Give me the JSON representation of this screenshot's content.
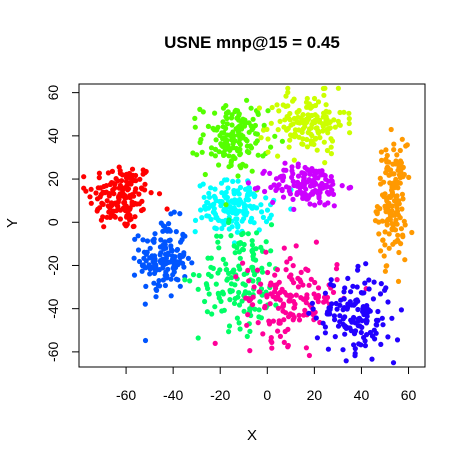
{
  "chart_data": {
    "type": "scatter",
    "title": "USNE mnp@15 = 0.45",
    "xlabel": "X",
    "ylabel": "Y",
    "xlim": [
      -80,
      67
    ],
    "ylim": [
      -67,
      64
    ],
    "xticks": [
      -60,
      -40,
      -20,
      0,
      20,
      40,
      60
    ],
    "yticks": [
      -60,
      -40,
      -20,
      0,
      20,
      40,
      60
    ],
    "grid": false,
    "legend": "none",
    "clusters": [
      {
        "color": "#ff0000",
        "center": [
          -62,
          12
        ],
        "spread": [
          7,
          8
        ],
        "count": 150
      },
      {
        "color": "#0055ff",
        "center": [
          -44,
          -17
        ],
        "spread": [
          5,
          9
        ],
        "count": 150
      },
      {
        "color": "#ff9900",
        "center": [
          53,
          10
        ],
        "spread": [
          3,
          13
        ],
        "count": 150
      },
      {
        "color": "#00ffff",
        "center": [
          -14,
          7
        ],
        "spread": [
          8,
          6
        ],
        "count": 150
      },
      {
        "color": "#55ff00",
        "center": [
          -14,
          39
        ],
        "spread": [
          7,
          8
        ],
        "count": 150
      },
      {
        "color": "#ccff00",
        "center": [
          17,
          46
        ],
        "spread": [
          8,
          7
        ],
        "count": 150
      },
      {
        "color": "#cc00ff",
        "center": [
          17,
          17
        ],
        "spread": [
          8,
          5
        ],
        "count": 150
      },
      {
        "color": "#00ff66",
        "center": [
          -11,
          -25
        ],
        "spread": [
          9,
          12
        ],
        "count": 150
      },
      {
        "color": "#ff0099",
        "center": [
          10,
          -35
        ],
        "spread": [
          10,
          10
        ],
        "count": 150
      },
      {
        "color": "#2200ff",
        "center": [
          37,
          -43
        ],
        "spread": [
          8,
          9
        ],
        "count": 150
      }
    ]
  }
}
